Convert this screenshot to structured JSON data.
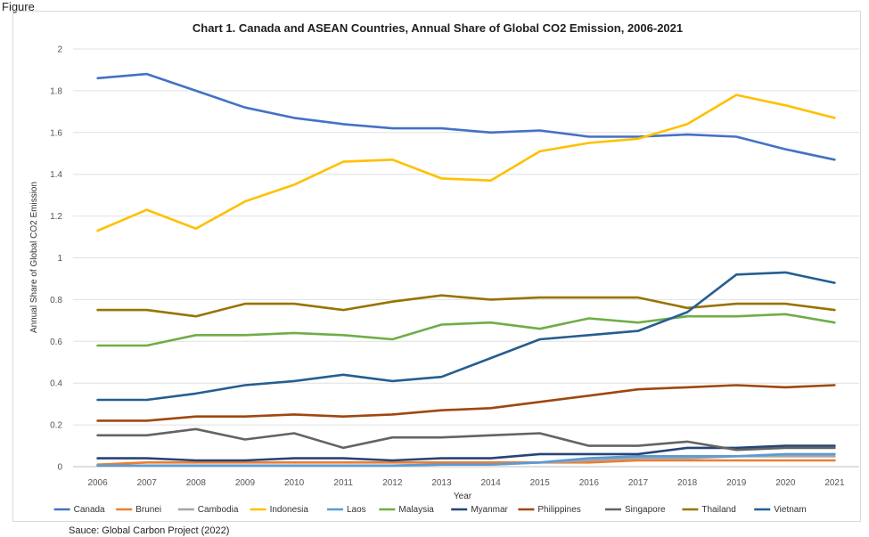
{
  "header_fragment": "Figure",
  "source_note": "Sauce: Global Carbon Project (2022)",
  "chart_data": {
    "type": "line",
    "title": "Chart 1. Canada and ASEAN Countries, Annual Share of Global CO2 Emission, 2006-2021",
    "xlabel": "Year",
    "ylabel": "Annual Share of Global CO2 Emission",
    "ylim": [
      0,
      2
    ],
    "y_ticks": [
      "0",
      "0.2",
      "0.4",
      "0.6",
      "0.8",
      "1",
      "1.2",
      "1.4",
      "1.6",
      "1.8",
      "2"
    ],
    "grid": true,
    "legend_position": "bottom",
    "x": [
      "2006",
      "2007",
      "2008",
      "2009",
      "2010",
      "2011",
      "2012",
      "2013",
      "2014",
      "2015",
      "2016",
      "2017",
      "2018",
      "2019",
      "2020",
      "2021"
    ],
    "series": [
      {
        "name": "Canada",
        "color": "#4472c4",
        "values": [
          1.86,
          1.88,
          1.8,
          1.72,
          1.67,
          1.64,
          1.62,
          1.62,
          1.6,
          1.61,
          1.58,
          1.58,
          1.59,
          1.58,
          1.52,
          1.47
        ]
      },
      {
        "name": "Brunei",
        "color": "#ed7d31",
        "values": [
          0.01,
          0.02,
          0.02,
          0.02,
          0.02,
          0.02,
          0.02,
          0.02,
          0.02,
          0.02,
          0.02,
          0.03,
          0.03,
          0.03,
          0.03,
          0.03
        ]
      },
      {
        "name": "Cambodia",
        "color": "#a5a5a5",
        "values": [
          0.005,
          0.005,
          0.005,
          0.005,
          0.005,
          0.005,
          0.005,
          0.01,
          0.01,
          0.02,
          0.03,
          0.04,
          0.04,
          0.05,
          0.05,
          0.05
        ]
      },
      {
        "name": "Indonesia",
        "color": "#ffc000",
        "values": [
          1.13,
          1.23,
          1.14,
          1.27,
          1.35,
          1.46,
          1.47,
          1.38,
          1.37,
          1.51,
          1.55,
          1.57,
          1.64,
          1.78,
          1.73,
          1.67
        ]
      },
      {
        "name": "Laos",
        "color": "#5b9bd5",
        "values": [
          0.005,
          0.005,
          0.005,
          0.005,
          0.005,
          0.005,
          0.005,
          0.01,
          0.01,
          0.02,
          0.04,
          0.05,
          0.05,
          0.05,
          0.06,
          0.06
        ]
      },
      {
        "name": "Malaysia",
        "color": "#70ad47",
        "values": [
          0.58,
          0.58,
          0.63,
          0.63,
          0.64,
          0.63,
          0.61,
          0.68,
          0.69,
          0.66,
          0.71,
          0.69,
          0.72,
          0.72,
          0.73,
          0.69
        ]
      },
      {
        "name": "Myanmar",
        "color": "#264478",
        "values": [
          0.04,
          0.04,
          0.03,
          0.03,
          0.04,
          0.04,
          0.03,
          0.04,
          0.04,
          0.06,
          0.06,
          0.06,
          0.09,
          0.09,
          0.1,
          0.1
        ]
      },
      {
        "name": "Philippines",
        "color": "#9e480e",
        "values": [
          0.22,
          0.22,
          0.24,
          0.24,
          0.25,
          0.24,
          0.25,
          0.27,
          0.28,
          0.31,
          0.34,
          0.37,
          0.38,
          0.39,
          0.38,
          0.39
        ]
      },
      {
        "name": "Singapore",
        "color": "#636363",
        "values": [
          0.15,
          0.15,
          0.18,
          0.13,
          0.16,
          0.09,
          0.14,
          0.14,
          0.15,
          0.16,
          0.1,
          0.1,
          0.12,
          0.08,
          0.09,
          0.09
        ]
      },
      {
        "name": "Thailand",
        "color": "#997300",
        "values": [
          0.75,
          0.75,
          0.72,
          0.78,
          0.78,
          0.75,
          0.79,
          0.82,
          0.8,
          0.81,
          0.81,
          0.81,
          0.76,
          0.78,
          0.78,
          0.75
        ]
      },
      {
        "name": "Vietnam",
        "color": "#255e91",
        "values": [
          0.32,
          0.32,
          0.35,
          0.39,
          0.41,
          0.44,
          0.41,
          0.43,
          0.52,
          0.61,
          0.63,
          0.65,
          0.74,
          0.92,
          0.93,
          0.88
        ]
      }
    ]
  }
}
